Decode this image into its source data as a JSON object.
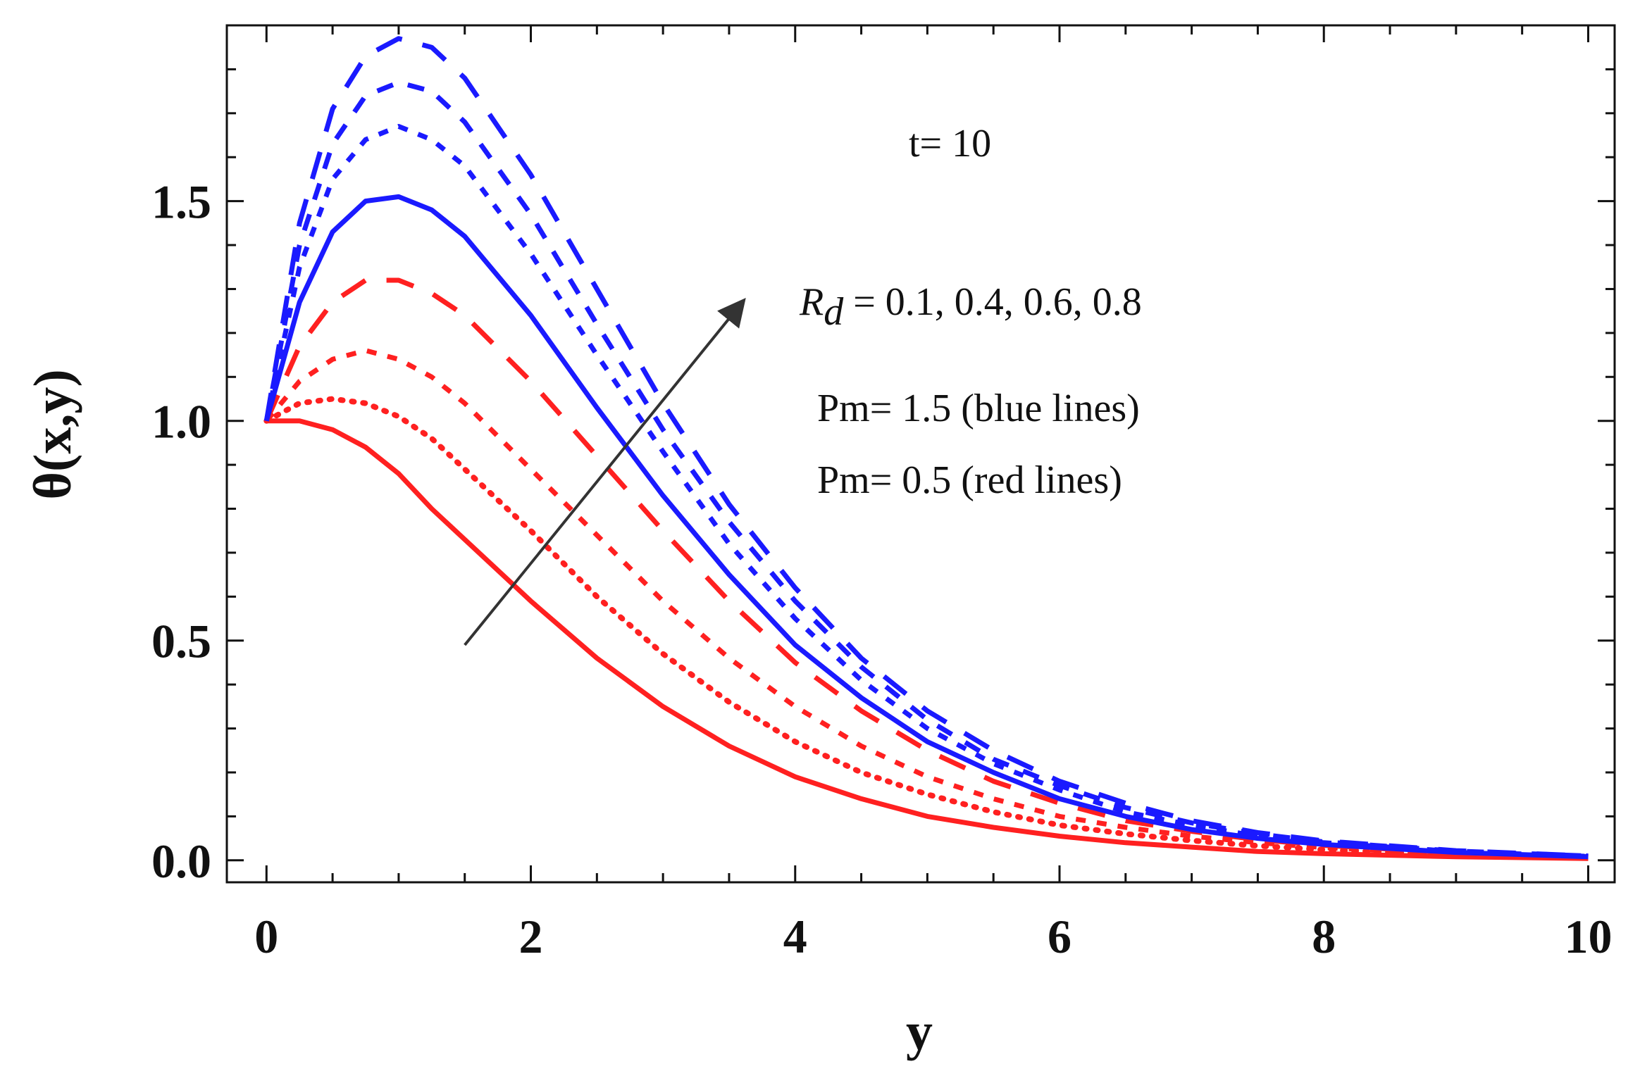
{
  "chart_data": {
    "type": "line",
    "xlabel": "y",
    "ylabel": "θ(x,y)",
    "xlim": [
      -0.3,
      10.2
    ],
    "ylim": [
      -0.05,
      1.9
    ],
    "xticks": [
      0,
      2,
      4,
      6,
      8,
      10
    ],
    "xtick_labels": [
      "0",
      "2",
      "4",
      "6",
      "8",
      "10"
    ],
    "yticks": [
      0.0,
      0.5,
      1.0,
      1.5
    ],
    "ytick_labels": [
      "0.0",
      "0.5",
      "1.0",
      "1.5"
    ],
    "grid": false,
    "legend": "none",
    "annotations": {
      "time": "t= 10",
      "rd_symbol": "R",
      "rd_subscript": "d",
      "rd_values": " = 0.1,  0.4,  0.6,  0.8",
      "pm_blue": "Pm= 1.5 (blue lines)",
      "pm_red": "Pm= 0.5 (red lines)"
    },
    "arrow": {
      "from": [
        1.5,
        0.49
      ],
      "to": [
        3.6,
        1.27
      ]
    },
    "colors": {
      "blue": "#1a1aff",
      "red": "#ff2020",
      "arrow": "#333333"
    },
    "x": [
      0,
      0.25,
      0.5,
      0.75,
      1,
      1.25,
      1.5,
      2,
      2.5,
      3,
      3.5,
      4,
      4.5,
      5,
      5.5,
      6,
      6.5,
      7,
      7.5,
      8,
      9,
      10
    ],
    "series": [
      {
        "group": "red",
        "style": "solid",
        "values": [
          1.0,
          1.0,
          0.98,
          0.94,
          0.88,
          0.8,
          0.73,
          0.59,
          0.46,
          0.35,
          0.26,
          0.19,
          0.14,
          0.1,
          0.075,
          0.055,
          0.04,
          0.03,
          0.02,
          0.015,
          0.008,
          0.004
        ]
      },
      {
        "group": "red",
        "style": "dotted",
        "values": [
          1.0,
          1.04,
          1.05,
          1.04,
          1.01,
          0.96,
          0.89,
          0.75,
          0.6,
          0.47,
          0.36,
          0.27,
          0.2,
          0.15,
          0.11,
          0.08,
          0.06,
          0.045,
          0.033,
          0.024,
          0.013,
          0.006
        ]
      },
      {
        "group": "red",
        "style": "dashed-short",
        "values": [
          1.0,
          1.09,
          1.14,
          1.16,
          1.14,
          1.1,
          1.04,
          0.89,
          0.74,
          0.59,
          0.46,
          0.35,
          0.26,
          0.19,
          0.14,
          0.1,
          0.075,
          0.055,
          0.04,
          0.029,
          0.015,
          0.007
        ]
      },
      {
        "group": "red",
        "style": "dashed-long",
        "values": [
          1.0,
          1.17,
          1.27,
          1.32,
          1.32,
          1.29,
          1.24,
          1.09,
          0.92,
          0.75,
          0.59,
          0.45,
          0.34,
          0.25,
          0.18,
          0.13,
          0.09,
          0.066,
          0.047,
          0.034,
          0.017,
          0.008
        ]
      },
      {
        "group": "blue",
        "style": "solid",
        "values": [
          1.0,
          1.27,
          1.43,
          1.5,
          1.51,
          1.48,
          1.42,
          1.24,
          1.03,
          0.83,
          0.65,
          0.49,
          0.37,
          0.27,
          0.2,
          0.14,
          0.1,
          0.07,
          0.05,
          0.036,
          0.018,
          0.008
        ]
      },
      {
        "group": "blue",
        "style": "dashed-short",
        "values": [
          1.0,
          1.35,
          1.55,
          1.64,
          1.67,
          1.64,
          1.58,
          1.38,
          1.15,
          0.93,
          0.72,
          0.55,
          0.41,
          0.3,
          0.22,
          0.16,
          0.11,
          0.08,
          0.055,
          0.04,
          0.02,
          0.009
        ]
      },
      {
        "group": "blue",
        "style": "dashed-med",
        "values": [
          1.0,
          1.4,
          1.63,
          1.74,
          1.77,
          1.75,
          1.68,
          1.47,
          1.22,
          0.98,
          0.77,
          0.59,
          0.44,
          0.32,
          0.23,
          0.17,
          0.12,
          0.085,
          0.06,
          0.042,
          0.021,
          0.01
        ]
      },
      {
        "group": "blue",
        "style": "dashed-long",
        "values": [
          1.0,
          1.45,
          1.71,
          1.83,
          1.87,
          1.85,
          1.78,
          1.56,
          1.3,
          1.04,
          0.81,
          0.62,
          0.46,
          0.34,
          0.25,
          0.18,
          0.13,
          0.09,
          0.063,
          0.044,
          0.022,
          0.01
        ]
      }
    ]
  }
}
